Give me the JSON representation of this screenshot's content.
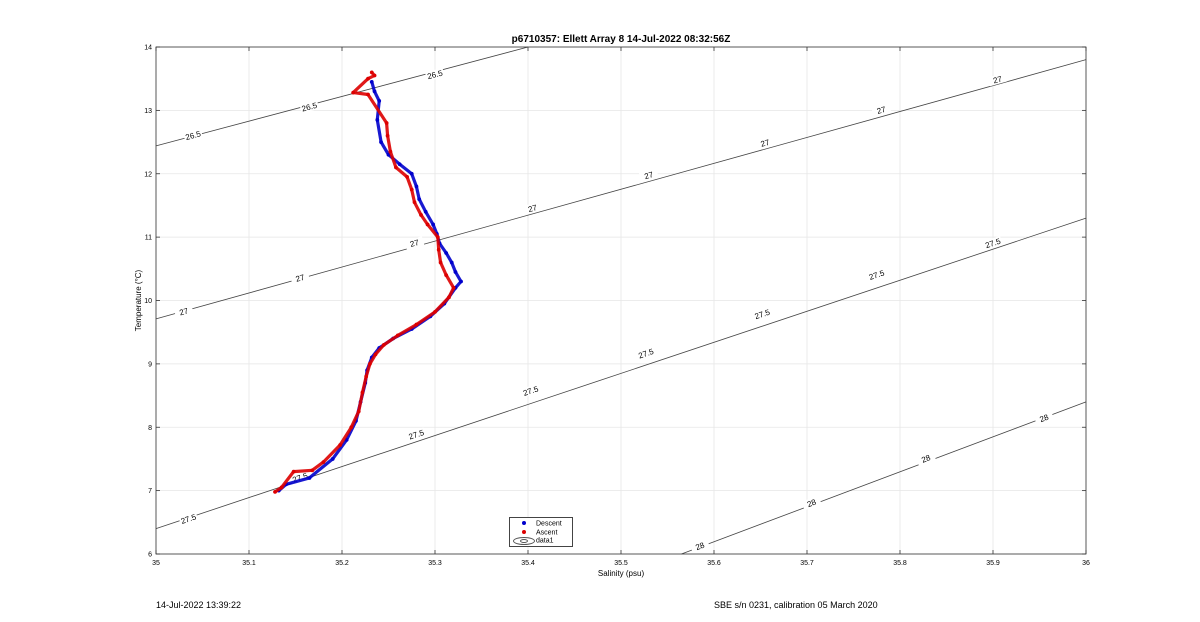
{
  "chart_data": {
    "type": "scatter",
    "title": "p6710357: Ellett Array 8 14-Jul-2022 08:32:56Z",
    "xlabel": "Salinity (psu)",
    "ylabel": "Temperature (°C)",
    "xlim": [
      35,
      36
    ],
    "ylim": [
      6,
      14
    ],
    "xticks": [
      "35",
      "35.1",
      "35.2",
      "35.3",
      "35.4",
      "35.5",
      "35.6",
      "35.7",
      "35.8",
      "35.9",
      "36"
    ],
    "yticks": [
      "6",
      "7",
      "8",
      "9",
      "10",
      "11",
      "12",
      "13",
      "14"
    ],
    "grid": true,
    "legend_location": "bottom-center",
    "legend": [
      "Descent",
      "Ascent",
      "data1"
    ],
    "series": [
      {
        "name": "Descent",
        "color": "#0000cc",
        "points": [
          [
            35.132,
            7.0
          ],
          [
            35.14,
            7.1
          ],
          [
            35.165,
            7.2
          ],
          [
            35.19,
            7.5
          ],
          [
            35.205,
            7.8
          ],
          [
            35.215,
            8.1
          ],
          [
            35.22,
            8.4
          ],
          [
            35.225,
            8.7
          ],
          [
            35.227,
            8.9
          ],
          [
            35.232,
            9.1
          ],
          [
            35.24,
            9.25
          ],
          [
            35.255,
            9.4
          ],
          [
            35.275,
            9.55
          ],
          [
            35.295,
            9.75
          ],
          [
            35.31,
            9.95
          ],
          [
            35.322,
            10.2
          ],
          [
            35.328,
            10.3
          ],
          [
            35.322,
            10.45
          ],
          [
            35.318,
            10.6
          ],
          [
            35.312,
            10.75
          ],
          [
            35.305,
            10.9
          ],
          [
            35.302,
            11.05
          ],
          [
            35.298,
            11.2
          ],
          [
            35.29,
            11.4
          ],
          [
            35.283,
            11.6
          ],
          [
            35.28,
            11.8
          ],
          [
            35.275,
            12.0
          ],
          [
            35.262,
            12.15
          ],
          [
            35.25,
            12.3
          ],
          [
            35.242,
            12.5
          ],
          [
            35.238,
            12.85
          ],
          [
            35.24,
            13.15
          ],
          [
            35.235,
            13.3
          ],
          [
            35.232,
            13.45
          ]
        ]
      },
      {
        "name": "Ascent",
        "color": "#dd0000",
        "points": [
          [
            35.128,
            6.98
          ],
          [
            35.135,
            7.05
          ],
          [
            35.148,
            7.3
          ],
          [
            35.168,
            7.32
          ],
          [
            35.18,
            7.45
          ],
          [
            35.198,
            7.72
          ],
          [
            35.21,
            8.0
          ],
          [
            35.218,
            8.25
          ],
          [
            35.222,
            8.55
          ],
          [
            35.226,
            8.8
          ],
          [
            35.23,
            9.0
          ],
          [
            35.236,
            9.15
          ],
          [
            35.245,
            9.3
          ],
          [
            35.26,
            9.45
          ],
          [
            35.28,
            9.62
          ],
          [
            35.3,
            9.82
          ],
          [
            35.315,
            10.05
          ],
          [
            35.32,
            10.2
          ],
          [
            35.312,
            10.4
          ],
          [
            35.306,
            10.6
          ],
          [
            35.304,
            10.8
          ],
          [
            35.303,
            11.0
          ],
          [
            35.292,
            11.2
          ],
          [
            35.285,
            11.35
          ],
          [
            35.278,
            11.55
          ],
          [
            35.275,
            11.75
          ],
          [
            35.27,
            11.95
          ],
          [
            35.258,
            12.1
          ],
          [
            35.252,
            12.35
          ],
          [
            35.249,
            12.6
          ],
          [
            35.248,
            12.8
          ],
          [
            35.228,
            13.25
          ],
          [
            35.212,
            13.28
          ],
          [
            35.228,
            13.5
          ],
          [
            35.235,
            13.55
          ],
          [
            35.232,
            13.6
          ]
        ]
      }
    ],
    "contours": [
      {
        "value": "26.5",
        "start": [
          35.0,
          12.44
        ],
        "end": [
          35.4,
          14.0
        ],
        "labels": [
          [
            35.04,
            12.6
          ],
          [
            35.165,
            13.05
          ],
          [
            35.3,
            13.56
          ]
        ]
      },
      {
        "value": "27",
        "start": [
          35.0,
          9.71
        ],
        "end": [
          36.0,
          13.8
        ],
        "labels": [
          [
            35.03,
            9.82
          ],
          [
            35.155,
            10.35
          ],
          [
            35.278,
            10.9
          ],
          [
            35.405,
            11.45
          ],
          [
            35.53,
            11.97
          ],
          [
            35.655,
            12.48
          ],
          [
            35.78,
            13.0
          ],
          [
            35.905,
            13.48
          ]
        ]
      },
      {
        "value": "27.5",
        "start": [
          35.0,
          6.4
        ],
        "end": [
          36.0,
          11.3
        ],
        "labels": [
          [
            35.035,
            6.55
          ],
          [
            35.155,
            7.2
          ],
          [
            35.28,
            7.88
          ],
          [
            35.403,
            8.57
          ],
          [
            35.527,
            9.16
          ],
          [
            35.652,
            9.78
          ],
          [
            35.775,
            10.4
          ],
          [
            35.9,
            10.9
          ]
        ]
      },
      {
        "value": "28",
        "start": [
          35.565,
          6.0
        ],
        "end": [
          36.0,
          8.4
        ],
        "labels": [
          [
            35.585,
            6.12
          ],
          [
            35.705,
            6.8
          ],
          [
            35.828,
            7.5
          ],
          [
            35.955,
            8.14
          ]
        ]
      }
    ]
  },
  "footer": {
    "left": "14-Jul-2022 13:39:22",
    "right": "SBE s/n 0231, calibration 05 March 2020"
  }
}
